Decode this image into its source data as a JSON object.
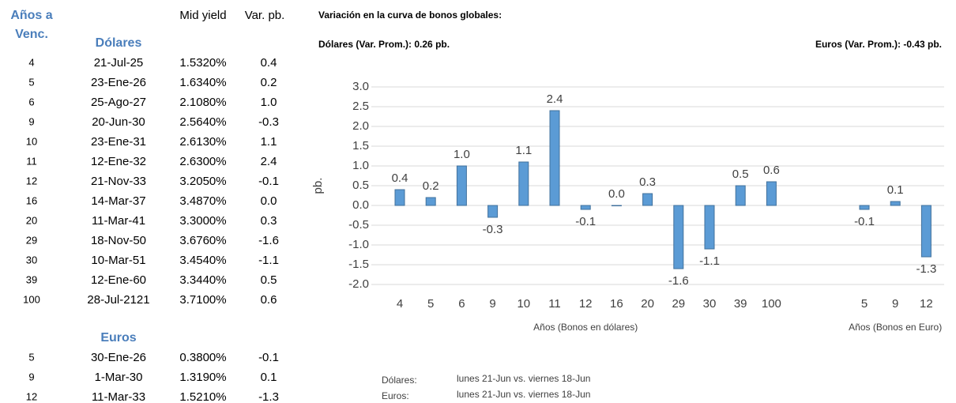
{
  "table": {
    "header": {
      "years": [
        "Años a",
        "Venc."
      ],
      "mid_yield": "Mid yield",
      "var": "Var. pb."
    },
    "sections": [
      {
        "title": "Dólares",
        "rows": [
          [
            "4",
            "21-Jul-25",
            "1.5320%",
            "0.4"
          ],
          [
            "5",
            "23-Ene-26",
            "1.6340%",
            "0.2"
          ],
          [
            "6",
            "25-Ago-27",
            "2.1080%",
            "1.0"
          ],
          [
            "9",
            "20-Jun-30",
            "2.5640%",
            "-0.3"
          ],
          [
            "10",
            "23-Ene-31",
            "2.6130%",
            "1.1"
          ],
          [
            "11",
            "12-Ene-32",
            "2.6300%",
            "2.4"
          ],
          [
            "12",
            "21-Nov-33",
            "3.2050%",
            "-0.1"
          ],
          [
            "16",
            "14-Mar-37",
            "3.4870%",
            "0.0"
          ],
          [
            "20",
            "11-Mar-41",
            "3.3000%",
            "0.3"
          ],
          [
            "29",
            "18-Nov-50",
            "3.6760%",
            "-1.6"
          ],
          [
            "30",
            "10-Mar-51",
            "3.4540%",
            "-1.1"
          ],
          [
            "39",
            "12-Ene-60",
            "3.3440%",
            "0.5"
          ],
          [
            "100",
            "28-Jul-2121",
            "3.7100%",
            "0.6"
          ]
        ]
      },
      {
        "title": "Euros",
        "rows": [
          [
            "5",
            "30-Ene-26",
            "0.3800%",
            "-0.1"
          ],
          [
            "9",
            "1-Mar-30",
            "1.3190%",
            "0.1"
          ],
          [
            "12",
            "11-Mar-33",
            "1.5210%",
            "-1.3"
          ]
        ]
      }
    ]
  },
  "chart_data": {
    "type": "bar",
    "title": "Variación en la curva de bonos globales:",
    "subtitle_left": "Dólares (Var. Prom.): 0.26 pb.",
    "subtitle_right": "Euros (Var. Prom.): -0.43 pb.",
    "y_label": "pb.",
    "x_labels": [
      "Años (Bonos en dólares)",
      "Años (Bonos en Euro)"
    ],
    "categories": [
      "4",
      "5",
      "6",
      "9",
      "10",
      "11",
      "12",
      "16",
      "20",
      "29",
      "30",
      "39",
      "100",
      null,
      null,
      "5",
      "9",
      "12"
    ],
    "values": [
      0.4,
      0.2,
      1.0,
      -0.3,
      1.1,
      2.4,
      -0.1,
      0.0,
      0.3,
      -1.6,
      -1.1,
      0.5,
      0.6,
      null,
      null,
      -0.1,
      0.1,
      -1.3
    ],
    "value_labels": [
      "0.4",
      "0.2",
      "1.0",
      "-0.3",
      "1.1",
      "2.4",
      "-0.1",
      "0.0",
      "0.3",
      "-1.6",
      "-1.1",
      "0.5",
      "0.6",
      null,
      null,
      "-0.1",
      "0.1",
      "-1.3"
    ],
    "color": "#5b9bd5",
    "ylim": [
      -2.0,
      3.0
    ],
    "yticks": [
      {
        "value": -2,
        "label": "-2.0"
      },
      {
        "value": -1.5,
        "label": "-1.5"
      },
      {
        "value": -1,
        "label": "-1.0"
      },
      {
        "value": -0.5,
        "label": "-0.5"
      },
      {
        "value": 0,
        "label": "0.0"
      },
      {
        "value": 0.5,
        "label": "0.5"
      },
      {
        "value": 1,
        "label": "1.0"
      },
      {
        "value": 1.5,
        "label": "1.5"
      },
      {
        "value": 2,
        "label": "2.0"
      },
      {
        "value": 2.5,
        "label": "2.5"
      },
      {
        "value": 3,
        "label": "3.0"
      }
    ],
    "grid": true,
    "notes": [
      [
        "Dólares:",
        "lunes 21-Jun vs. viernes 18-Jun"
      ],
      [
        "Euros:",
        "lunes 21-Jun vs. viernes 18-Jun"
      ]
    ]
  }
}
